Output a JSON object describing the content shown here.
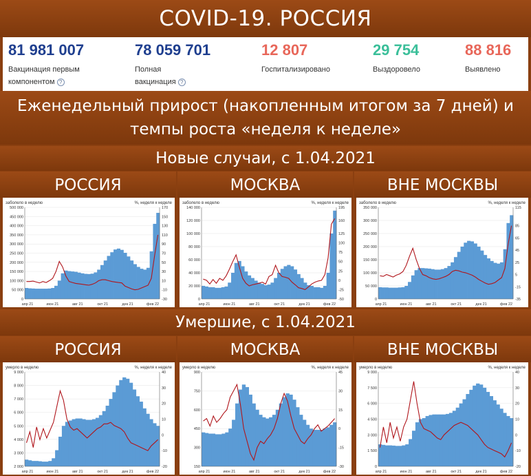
{
  "title": "COVID-19. РОССИЯ",
  "stats": [
    {
      "value": "81 981 007",
      "label_lines": [
        "Вакцинация первым",
        "компонентом"
      ],
      "help": true,
      "color": "#1f3f8f"
    },
    {
      "value": "78 059 701",
      "label_lines": [
        "Полная",
        "вакцинация"
      ],
      "help": true,
      "color": "#1f3f8f"
    },
    {
      "value": "12 807",
      "label_lines": [
        "Госпитализировано"
      ],
      "help": false,
      "color": "#e8675a"
    },
    {
      "value": "29 754",
      "label_lines": [
        "Выздоровело"
      ],
      "help": false,
      "color": "#3bbf9a"
    },
    {
      "value": "88 816",
      "label_lines": [
        "Выявлено"
      ],
      "help": false,
      "color": "#e8675a"
    }
  ],
  "help_icon_char": "?",
  "weekly_header": "Еженедельный прирост (накопленным итогом за 7 дней) и темпы роста «неделя к неделе»",
  "section_new": "Новые случаи, с 1.04.2021",
  "section_deaths": "Умершие, с 1.04.2021",
  "region_titles": [
    "РОССИЯ",
    "МОСКВА",
    "ВНЕ МОСКВЫ"
  ],
  "colors": {
    "bars": "#5b9bd5",
    "line": "#b0151b",
    "band": "#8a3f10"
  },
  "chart_data": [
    {
      "type": "area",
      "region": "РОССИЯ",
      "section": "new",
      "ylabel": "заболело в неделю",
      "y2label": "%, неделя к неделе",
      "x_ticks": [
        "апр 21",
        "июн 21",
        "авг 21",
        "окт 21",
        "дек 21",
        "фев 22"
      ],
      "y_ticks": [
        "0",
        "50 000",
        "100 000",
        "150 000",
        "200 000",
        "250 000",
        "300 000",
        "350 000",
        "400 000",
        "450 000",
        "500 000"
      ],
      "y2_ticks": [
        "-30",
        "-10",
        "10",
        "30",
        "50",
        "70",
        "90",
        "110",
        "130",
        "150",
        "170"
      ],
      "ylim": [
        0,
        500000
      ],
      "y2lim": [
        -30,
        170
      ],
      "weekly_cases": [
        60000,
        58000,
        57000,
        56000,
        56000,
        56000,
        56000,
        57000,
        60000,
        72000,
        100000,
        140000,
        155000,
        152000,
        150000,
        148000,
        144000,
        140000,
        137000,
        136000,
        138000,
        145000,
        160000,
        185000,
        210000,
        235000,
        255000,
        270000,
        275000,
        268000,
        252000,
        232000,
        210000,
        190000,
        175000,
        165000,
        160000,
        170000,
        260000,
        410000,
        470000
      ],
      "growth_pct": [
        8,
        8,
        9,
        7,
        5,
        8,
        6,
        10,
        15,
        30,
        52,
        40,
        20,
        8,
        6,
        4,
        3,
        2,
        1,
        0,
        2,
        5,
        10,
        12,
        12,
        10,
        8,
        7,
        6,
        5,
        -2,
        -5,
        -8,
        -10,
        -9,
        -6,
        -3,
        0,
        15,
        65,
        110
      ]
    },
    {
      "type": "area",
      "region": "МОСКВА",
      "section": "new",
      "ylabel": "заболело в неделю",
      "y2label": "%, неделя к неделе",
      "x_ticks": [
        "апр 21",
        "июн 21",
        "авг 21",
        "окт 21",
        "дек 21",
        "фев 22"
      ],
      "y_ticks": [
        "0",
        "20 000",
        "40 000",
        "60 000",
        "80 000",
        "100 000",
        "120 000",
        "140 000"
      ],
      "y2_ticks": [
        "-50",
        "-25",
        "0",
        "25",
        "50",
        "75",
        "100",
        "125",
        "160",
        "195"
      ],
      "ylim": [
        0,
        140000
      ],
      "y2lim": [
        -50,
        195
      ],
      "weekly_cases": [
        20000,
        19000,
        18000,
        18000,
        17000,
        17000,
        18000,
        19000,
        25000,
        40000,
        55000,
        58000,
        50000,
        42000,
        36000,
        32000,
        28000,
        25000,
        23000,
        21000,
        22000,
        25000,
        32000,
        40000,
        46000,
        50000,
        52000,
        50000,
        45000,
        38000,
        32000,
        25000,
        21000,
        20000,
        18000,
        18000,
        17000,
        20000,
        40000,
        100000,
        135000
      ],
      "growth_pct": [
        3,
        0,
        -10,
        2,
        -8,
        5,
        0,
        12,
        30,
        50,
        68,
        35,
        5,
        -8,
        -15,
        -12,
        -10,
        -8,
        -5,
        -10,
        10,
        15,
        40,
        20,
        10,
        8,
        5,
        -5,
        -12,
        -20,
        -22,
        -25,
        -18,
        -10,
        -5,
        -2,
        0,
        15,
        60,
        150,
        165
      ]
    },
    {
      "type": "area",
      "region": "ВНЕ МОСКВЫ",
      "section": "new",
      "ylabel": "заболело в неделю",
      "y2label": "%, неделя к неделе",
      "x_ticks": [
        "апр 21",
        "июн 21",
        "авг 21",
        "окт 21",
        "дек 21",
        "фев 22"
      ],
      "y_ticks": [
        "0",
        "50 000",
        "100 000",
        "150 000",
        "200 000",
        "250 000",
        "300 000",
        "350 000"
      ],
      "y2_ticks": [
        "-35",
        "-15",
        "5",
        "25",
        "45",
        "65",
        "85",
        "115"
      ],
      "ylim": [
        0,
        350000
      ],
      "y2lim": [
        -35,
        115
      ],
      "weekly_cases": [
        45000,
        44000,
        44000,
        43000,
        43000,
        43000,
        44000,
        45000,
        50000,
        65000,
        90000,
        110000,
        118000,
        118000,
        117000,
        116000,
        114000,
        112000,
        112000,
        114000,
        118000,
        126000,
        140000,
        160000,
        180000,
        200000,
        215000,
        222000,
        220000,
        212000,
        200000,
        185000,
        168000,
        155000,
        145000,
        138000,
        135000,
        140000,
        190000,
        290000,
        320000
      ],
      "growth_pct": [
        3,
        2,
        5,
        3,
        1,
        4,
        6,
        10,
        20,
        35,
        48,
        30,
        15,
        5,
        3,
        0,
        -2,
        -3,
        -2,
        0,
        2,
        5,
        10,
        12,
        11,
        9,
        8,
        6,
        4,
        1,
        -3,
        -6,
        -9,
        -11,
        -10,
        -8,
        -4,
        0,
        15,
        55,
        85
      ]
    },
    {
      "type": "area",
      "region": "РОССИЯ",
      "section": "deaths",
      "ylabel": "умерло в неделю",
      "y2label": "%, неделя к неделе",
      "x_ticks": [
        "апр 21",
        "июн 21",
        "авг 21",
        "окт 21",
        "дек 21",
        "фев 22"
      ],
      "y_ticks": [
        "2 000",
        "3 000",
        "4 000",
        "5 000",
        "6 000",
        "7 000",
        "8 000",
        "9 000"
      ],
      "y2_ticks": [
        "-20",
        "-10",
        "0",
        "10",
        "20",
        "30",
        "40"
      ],
      "ylim": [
        2000,
        9000
      ],
      "y2lim": [
        -20,
        40
      ],
      "weekly_deaths": [
        2500,
        2450,
        2400,
        2400,
        2380,
        2350,
        2350,
        2400,
        2600,
        3200,
        4200,
        5000,
        5300,
        5400,
        5500,
        5550,
        5550,
        5500,
        5450,
        5450,
        5500,
        5600,
        5800,
        6100,
        6500,
        7000,
        7500,
        8000,
        8400,
        8600,
        8500,
        8200,
        7700,
        7200,
        6800,
        6300,
        5900,
        5500,
        5200,
        5000
      ],
      "growth_pct": [
        -5,
        2,
        -8,
        5,
        -3,
        4,
        -2,
        3,
        8,
        18,
        28,
        22,
        10,
        5,
        3,
        4,
        2,
        0,
        -2,
        0,
        2,
        4,
        5,
        7,
        7,
        8,
        6,
        5,
        4,
        2,
        -2,
        -5,
        -6,
        -7,
        -8,
        -9,
        -10,
        -7,
        -5,
        -3
      ]
    },
    {
      "type": "area",
      "region": "МОСКВА",
      "section": "deaths",
      "ylabel": "умерло в неделю",
      "y2label": "%, неделя к неделе",
      "x_ticks": [
        "апр 21",
        "июн 21",
        "авг 21",
        "окт 21",
        "дек 21",
        "фев 22"
      ],
      "y_ticks": [
        "150",
        "300",
        "450",
        "600",
        "750",
        "900"
      ],
      "y2_ticks": [
        "-30",
        "-15",
        "0",
        "15",
        "30",
        "45"
      ],
      "ylim": [
        150,
        900
      ],
      "y2lim": [
        -30,
        45
      ],
      "weekly_deaths": [
        420,
        415,
        410,
        410,
        405,
        405,
        410,
        420,
        450,
        520,
        650,
        760,
        800,
        780,
        720,
        650,
        600,
        560,
        540,
        530,
        540,
        560,
        600,
        650,
        700,
        730,
        720,
        680,
        620,
        560,
        520,
        480,
        450,
        440,
        440,
        440,
        450,
        460,
        480,
        500
      ],
      "growth_pct": [
        6,
        8,
        2,
        10,
        5,
        8,
        12,
        15,
        25,
        30,
        35,
        20,
        0,
        -10,
        -20,
        -25,
        -15,
        -10,
        -12,
        -8,
        -5,
        0,
        8,
        20,
        28,
        22,
        10,
        0,
        -5,
        -10,
        -12,
        -8,
        -5,
        0,
        3,
        -2,
        0,
        2,
        5,
        8
      ]
    },
    {
      "type": "area",
      "region": "ВНЕ МОСКВЫ",
      "section": "deaths",
      "ylabel": "умерло в неделю",
      "y2label": "%, неделя к неделе",
      "x_ticks": [
        "апр 21",
        "июн 21",
        "авг 21",
        "окт 21",
        "дек 21",
        "фев 22"
      ],
      "y_ticks": [
        "0",
        "1 500",
        "3 000",
        "4 500",
        "6 000",
        "7 500",
        "9 000"
      ],
      "y2_ticks": [
        "-20",
        "-10",
        "0",
        "10",
        "20",
        "30",
        "40"
      ],
      "ylim": [
        0,
        9000
      ],
      "y2lim": [
        -20,
        40
      ],
      "weekly_deaths": [
        2100,
        2050,
        2000,
        2000,
        1980,
        1950,
        1950,
        2000,
        2100,
        2600,
        3400,
        4200,
        4500,
        4600,
        4800,
        4900,
        4950,
        4950,
        4950,
        4950,
        5000,
        5100,
        5300,
        5600,
        6000,
        6400,
        6900,
        7300,
        7700,
        7900,
        7800,
        7500,
        7100,
        6700,
        6300,
        5900,
        5500,
        5100,
        4800,
        4600
      ],
      "growth_pct": [
        -8,
        5,
        -5,
        8,
        -2,
        5,
        -4,
        5,
        10,
        22,
        34,
        20,
        8,
        4,
        3,
        2,
        0,
        -2,
        -3,
        0,
        2,
        4,
        6,
        7,
        8,
        7,
        6,
        4,
        2,
        0,
        -3,
        -6,
        -8,
        -9,
        -10,
        -11,
        -12,
        -14,
        -10,
        -5
      ]
    }
  ]
}
